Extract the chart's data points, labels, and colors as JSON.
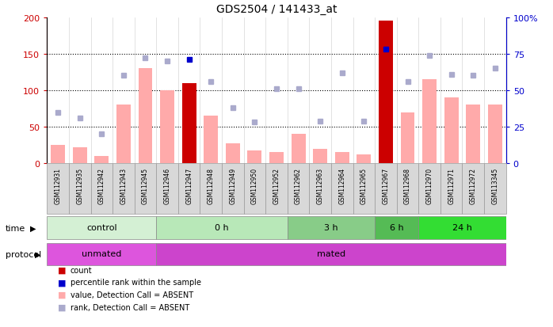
{
  "title": "GDS2504 / 141433_at",
  "samples": [
    "GSM112931",
    "GSM112935",
    "GSM112942",
    "GSM112943",
    "GSM112945",
    "GSM112946",
    "GSM112947",
    "GSM112948",
    "GSM112949",
    "GSM112950",
    "GSM112952",
    "GSM112962",
    "GSM112963",
    "GSM112964",
    "GSM112965",
    "GSM112967",
    "GSM112968",
    "GSM112970",
    "GSM112971",
    "GSM112972",
    "GSM113345"
  ],
  "bar_values": [
    25,
    22,
    10,
    80,
    130,
    100,
    110,
    65,
    27,
    17,
    15,
    40,
    20,
    15,
    12,
    195,
    70,
    115,
    90,
    80,
    80
  ],
  "bar_colors_flag": [
    false,
    false,
    false,
    false,
    false,
    false,
    true,
    false,
    false,
    false,
    false,
    false,
    false,
    false,
    false,
    true,
    false,
    false,
    false,
    false,
    false
  ],
  "scatter_values": [
    35,
    31,
    20,
    60,
    72,
    70,
    71,
    56,
    38,
    28,
    51,
    51,
    29,
    62,
    29,
    78,
    56,
    74,
    61,
    60,
    65
  ],
  "scatter_colors_flag": [
    false,
    false,
    false,
    false,
    false,
    false,
    true,
    false,
    false,
    false,
    false,
    false,
    false,
    false,
    false,
    true,
    false,
    false,
    false,
    false,
    false
  ],
  "ylim_left": [
    0,
    200
  ],
  "ylim_right": [
    0,
    100
  ],
  "yticks_left": [
    0,
    50,
    100,
    150,
    200
  ],
  "yticks_right": [
    0,
    25,
    50,
    75,
    100
  ],
  "ytick_labels_left": [
    "0",
    "50",
    "100",
    "150",
    "200"
  ],
  "ytick_labels_right": [
    "0",
    "25",
    "50",
    "75",
    "100%"
  ],
  "time_groups": [
    {
      "label": "control",
      "start": 0,
      "end": 5,
      "color": "#d4f0d4"
    },
    {
      "label": "0 h",
      "start": 5,
      "end": 11,
      "color": "#b8e8b8"
    },
    {
      "label": "3 h",
      "start": 11,
      "end": 15,
      "color": "#88cc88"
    },
    {
      "label": "6 h",
      "start": 15,
      "end": 17,
      "color": "#55bb55"
    },
    {
      "label": "24 h",
      "start": 17,
      "end": 21,
      "color": "#33dd33"
    }
  ],
  "protocol_groups": [
    {
      "label": "unmated",
      "start": 0,
      "end": 5,
      "color": "#dd55dd"
    },
    {
      "label": "mated",
      "start": 5,
      "end": 21,
      "color": "#cc44cc"
    }
  ],
  "legend_items": [
    {
      "color": "#cc0000",
      "label": "count"
    },
    {
      "color": "#0000cc",
      "label": "percentile rank within the sample"
    },
    {
      "color": "#ffaaaa",
      "label": "value, Detection Call = ABSENT"
    },
    {
      "color": "#aaaacc",
      "label": "rank, Detection Call = ABSENT"
    }
  ],
  "bar_color_normal": "#ffaaaa",
  "bar_color_highlight": "#cc0000",
  "scatter_color_normal": "#aaaacc",
  "scatter_color_highlight": "#0000cc",
  "title_fontsize": 10,
  "axis_color_left": "#cc0000",
  "axis_color_right": "#0000cc"
}
